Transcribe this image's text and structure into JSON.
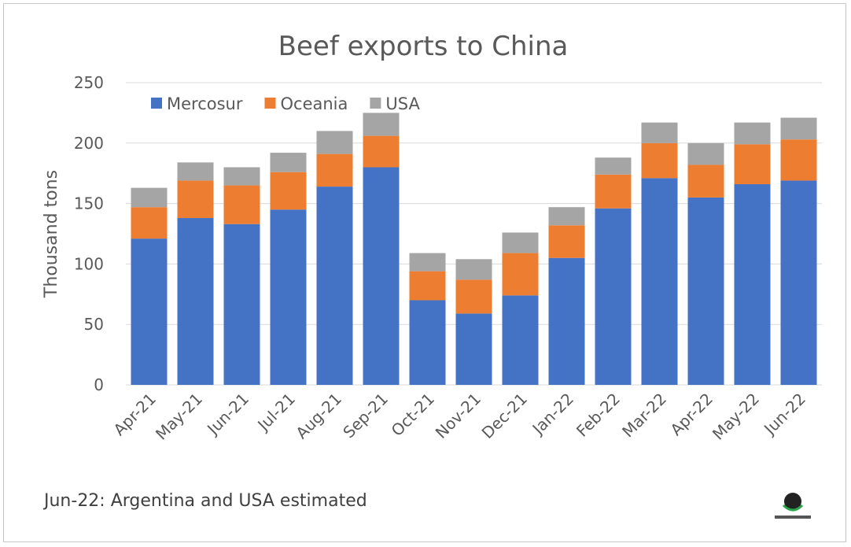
{
  "chart_data": {
    "type": "bar",
    "stacked": true,
    "title": "Beef exports to China",
    "ylabel": "Thousand tons",
    "xlabel": "",
    "ylim": [
      0,
      250
    ],
    "yticks": [
      0,
      50,
      100,
      150,
      200,
      250
    ],
    "grid": true,
    "legend_position": "top-left",
    "categories": [
      "Apr-21",
      "May-21",
      "Jun-21",
      "Jul-21",
      "Aug-21",
      "Sep-21",
      "Oct-21",
      "Nov-21",
      "Dec-21",
      "Jan-22",
      "Feb-22",
      "Mar-22",
      "Apr-22",
      "May-22",
      "Jun-22"
    ],
    "series": [
      {
        "name": "Mercosur",
        "color": "#4472c4",
        "values": [
          121,
          138,
          133,
          145,
          164,
          180,
          70,
          59,
          74,
          105,
          146,
          171,
          155,
          166,
          169
        ]
      },
      {
        "name": "Oceania",
        "color": "#ed7d31",
        "values": [
          26,
          31,
          32,
          31,
          27,
          26,
          24,
          28,
          35,
          27,
          28,
          29,
          27,
          33,
          34
        ]
      },
      {
        "name": "USA",
        "color": "#a5a5a5",
        "values": [
          16,
          15,
          15,
          16,
          19,
          19,
          15,
          17,
          17,
          15,
          14,
          17,
          18,
          18,
          18
        ]
      }
    ]
  },
  "footnote": "Jun-22: Argentina and USA estimated",
  "logo": "worldbr-globe-logo"
}
